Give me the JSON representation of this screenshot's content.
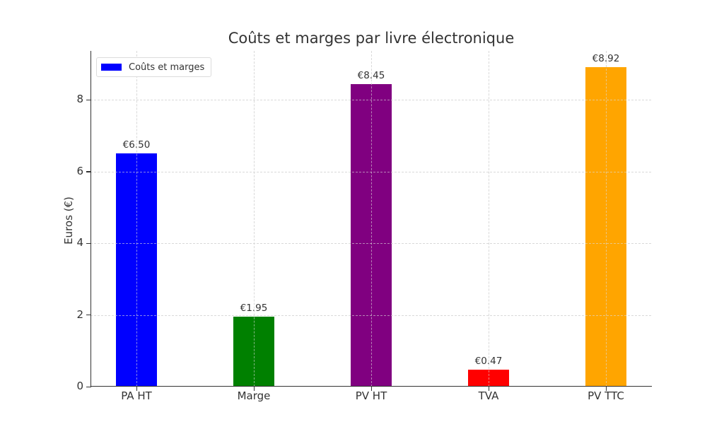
{
  "chart_data": {
    "type": "bar",
    "title": "Coûts et marges par livre électronique",
    "xlabel": "",
    "ylabel": "Euros (€)",
    "categories": [
      "PA HT",
      "Marge",
      "PV HT",
      "TVA",
      "PV TTC"
    ],
    "values": [
      6.5,
      1.95,
      8.45,
      0.47,
      8.92
    ],
    "value_labels": [
      "€6.50",
      "€1.95",
      "€8.45",
      "€0.47",
      "€8.92"
    ],
    "colors": [
      "#0000ff",
      "#008000",
      "#800080",
      "#ff0000",
      "#ffa500"
    ],
    "ylim": [
      0,
      9.37
    ],
    "yticks": [
      0,
      2,
      4,
      6,
      8
    ],
    "ytick_labels": [
      "0",
      "2",
      "4",
      "6",
      "8"
    ],
    "grid": true,
    "legend": {
      "position": "upper left",
      "entries": [
        {
          "label": "Coûts et marges",
          "color": "#0000ff"
        }
      ]
    }
  }
}
